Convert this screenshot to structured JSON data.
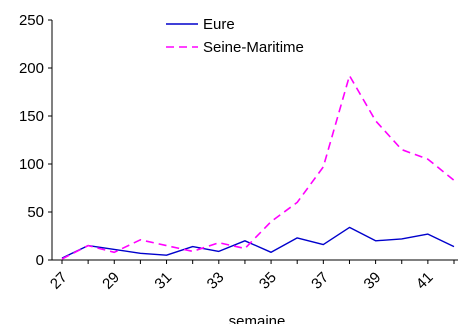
{
  "chart_data": {
    "type": "line",
    "title": "",
    "xlabel": "semaine",
    "ylabel": "",
    "x": [
      27,
      28,
      29,
      30,
      31,
      32,
      33,
      34,
      35,
      36,
      37,
      38,
      39,
      40,
      41,
      42
    ],
    "x_tick_labels": [
      "27",
      "29",
      "31",
      "33",
      "35",
      "37",
      "39",
      "41"
    ],
    "y_tick_labels": [
      "0",
      "50",
      "100",
      "150",
      "200",
      "250"
    ],
    "ylim": [
      0,
      250
    ],
    "grid": false,
    "legend_position": "top-center",
    "series": [
      {
        "name": "Eure",
        "color": "#0000cc",
        "style": "solid",
        "values": [
          2,
          15,
          11,
          7,
          5,
          14,
          9,
          20,
          8,
          23,
          16,
          34,
          20,
          22,
          27,
          14
        ]
      },
      {
        "name": "Seine-Maritime",
        "color": "#ff00ff",
        "style": "dashed",
        "values": [
          1,
          15,
          8,
          21,
          15,
          9,
          18,
          12,
          40,
          60,
          97,
          192,
          145,
          115,
          105,
          83
        ]
      }
    ]
  }
}
